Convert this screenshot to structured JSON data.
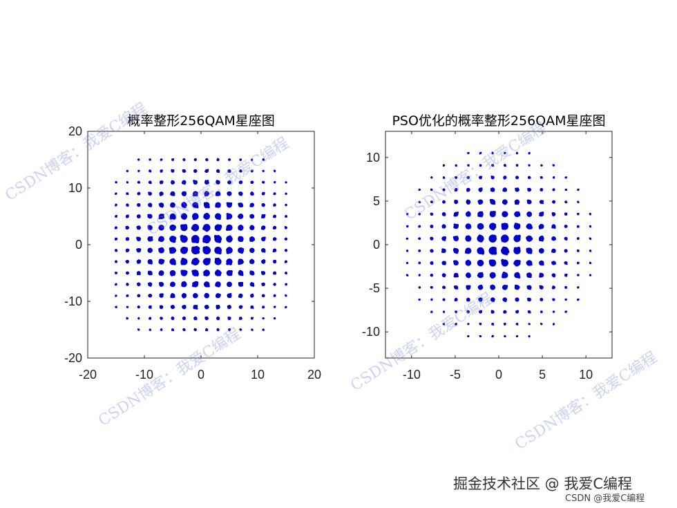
{
  "chart_data": [
    {
      "type": "scatter",
      "title": "概率整形256QAM星座图",
      "xlabel": "",
      "ylabel": "",
      "xlim": [
        -20,
        20
      ],
      "ylim": [
        -20,
        20
      ],
      "xticks": [
        -20,
        -10,
        0,
        10,
        20
      ],
      "yticks": [
        -20,
        -10,
        0,
        10,
        20
      ],
      "grid": false,
      "marker_color": "#0000cc",
      "series": [
        {
          "description_of_points": "16x16 uniform grid, spacing 2, levels ±1..±15, corners outside radius ~19.5 removed, larger clusters near the center",
          "grid_levels": [
            -15,
            -13,
            -11,
            -9,
            -7,
            -5,
            -3,
            -1,
            1,
            3,
            5,
            7,
            9,
            11,
            13,
            15
          ],
          "cutoff_radius": 19.5
        }
      ]
    },
    {
      "type": "scatter",
      "title": "PSO优化的概率整形256QAM星座图",
      "xlabel": "",
      "ylabel": "",
      "xlim": [
        -13,
        13
      ],
      "ylim": [
        -13,
        13
      ],
      "xticks": [
        -10,
        -5,
        0,
        5,
        10
      ],
      "yticks": [
        -10,
        -5,
        0,
        5,
        10
      ],
      "grid": false,
      "marker_color": "#0000cc",
      "series": [
        {
          "description_of_points": "16x16 grid, spacing 2, levels ±1..±15 scaled by 0.7, points outside radius ~11 removed, larger clusters near the center",
          "grid_levels": [
            -15,
            -13,
            -11,
            -9,
            -7,
            -5,
            -3,
            -1,
            1,
            3,
            5,
            7,
            9,
            11,
            13,
            15
          ],
          "scale": 0.7,
          "cutoff_radius": 11.2
        }
      ]
    }
  ],
  "watermark_text": "CSDN博客：我爱C编程",
  "footer": {
    "brand": "掘金技术社区 @ 我爱C编程",
    "credit": "CSDN @我爱C编程"
  }
}
